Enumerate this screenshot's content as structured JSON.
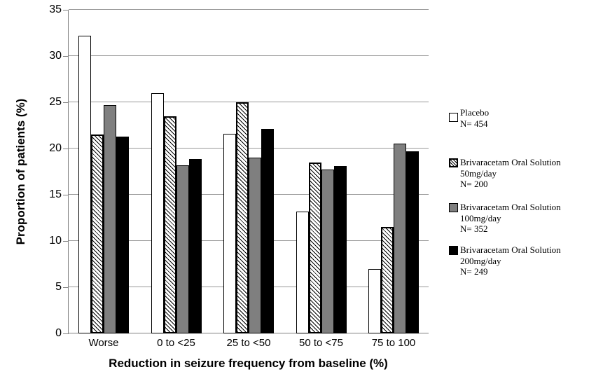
{
  "chart_data": {
    "type": "bar",
    "title": "",
    "categories": [
      "Worse",
      "0 to <25",
      "25 to <50",
      "50 to <75",
      "75 to 100"
    ],
    "series": [
      {
        "name": "Placebo",
        "legend_lines": [
          "Placebo",
          "N= 454"
        ],
        "style": "white",
        "values": [
          32.2,
          26.0,
          21.6,
          13.2,
          7.0
        ]
      },
      {
        "name": "Brivaracetam Oral Solution 50mg/day",
        "legend_lines": [
          "Brivaracetam Oral Solution",
          "50mg/day",
          "N= 200"
        ],
        "style": "hatch",
        "values": [
          21.5,
          23.5,
          25.0,
          18.5,
          11.5
        ]
      },
      {
        "name": "Brivaracetam Oral Solution 100mg/day",
        "legend_lines": [
          "Brivaracetam Oral Solution",
          "100mg/day",
          "N= 352"
        ],
        "style": "gray",
        "values": [
          24.7,
          18.2,
          19.0,
          17.7,
          20.5
        ]
      },
      {
        "name": "Brivaracetam Oral Solution 200mg/day",
        "legend_lines": [
          "Brivaracetam Oral Solution",
          "200mg/day",
          "N= 249"
        ],
        "style": "black",
        "values": [
          21.3,
          18.9,
          22.1,
          18.1,
          19.7
        ]
      }
    ],
    "xlabel": "Reduction in seizure frequency from baseline (%)",
    "ylabel": "Proportion  of patients (%)",
    "ylim": [
      0,
      35
    ],
    "yticks": [
      0,
      5,
      10,
      15,
      20,
      25,
      30,
      35
    ],
    "grid": true,
    "legend_position": "right",
    "colors": {
      "bar_white": "#ffffff",
      "bar_gray": "#7f7f7f",
      "bar_black": "#000000",
      "hatch_line": "#000000",
      "gridline": "#999999",
      "axis": "#808080",
      "text": "#000000"
    }
  }
}
